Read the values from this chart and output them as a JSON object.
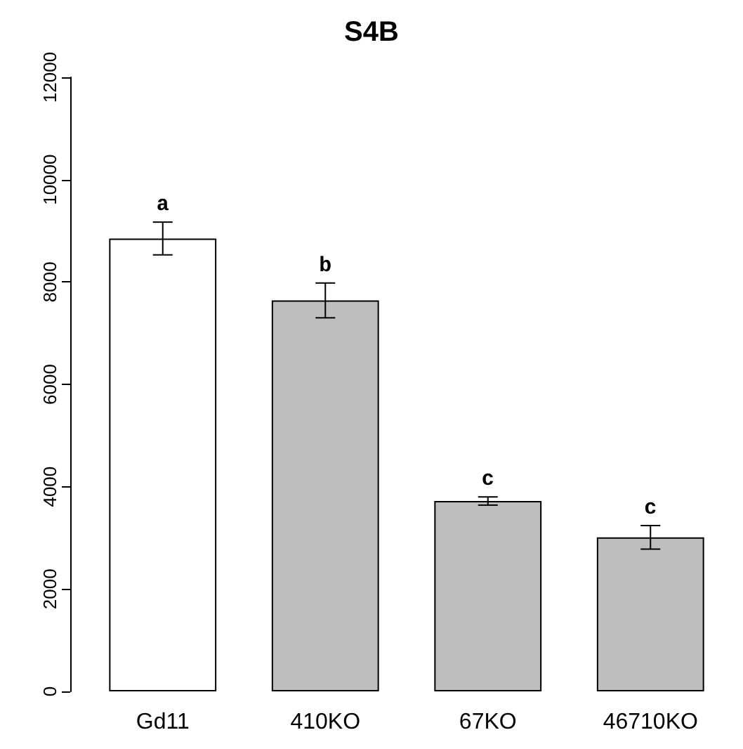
{
  "chart_data": {
    "type": "bar",
    "title": "S4B",
    "categories": [
      "Gd11",
      "410KO",
      "67KO",
      "46710KO"
    ],
    "values": [
      8850,
      7640,
      3720,
      3010
    ],
    "errors": [
      320,
      340,
      80,
      230
    ],
    "colors": [
      "#ffffff",
      "#bebebe",
      "#bebebe",
      "#bebebe"
    ],
    "ylim": [
      0,
      12000
    ],
    "yticks": [
      0,
      2000,
      4000,
      6000,
      8000,
      10000,
      12000
    ],
    "grid": false,
    "annotations": [
      "a",
      "b",
      "c",
      "c"
    ]
  }
}
